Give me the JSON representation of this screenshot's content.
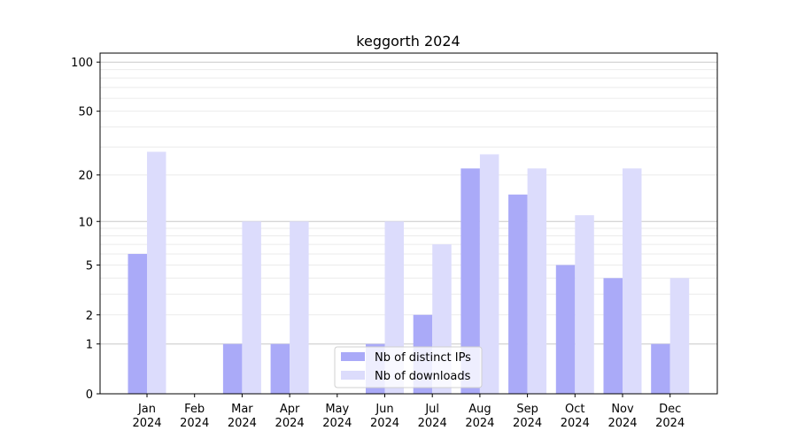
{
  "chart_data": {
    "type": "bar",
    "title": "keggorth 2024",
    "xlabel": "",
    "ylabel": "",
    "yscale": "log(1+y)",
    "ylim": [
      0,
      110
    ],
    "yticks": [
      0,
      1,
      2,
      5,
      10,
      20,
      50,
      100
    ],
    "categories": [
      [
        "Jan",
        "2024"
      ],
      [
        "Feb",
        "2024"
      ],
      [
        "Mar",
        "2024"
      ],
      [
        "Apr",
        "2024"
      ],
      [
        "May",
        "2024"
      ],
      [
        "Jun",
        "2024"
      ],
      [
        "Jul",
        "2024"
      ],
      [
        "Aug",
        "2024"
      ],
      [
        "Sep",
        "2024"
      ],
      [
        "Oct",
        "2024"
      ],
      [
        "Nov",
        "2024"
      ],
      [
        "Dec",
        "2024"
      ]
    ],
    "series": [
      {
        "name": "Nb of distinct IPs",
        "color": "#aaaaf8",
        "values": [
          6,
          0,
          1,
          1,
          0,
          1,
          2,
          22,
          15,
          5,
          4,
          1
        ]
      },
      {
        "name": "Nb of downloads",
        "color": "#dcdcfc",
        "values": [
          28,
          0,
          10,
          10,
          0,
          10,
          7,
          27,
          22,
          11,
          22,
          4
        ]
      }
    ],
    "legend": "bottom-center",
    "grid": true
  }
}
